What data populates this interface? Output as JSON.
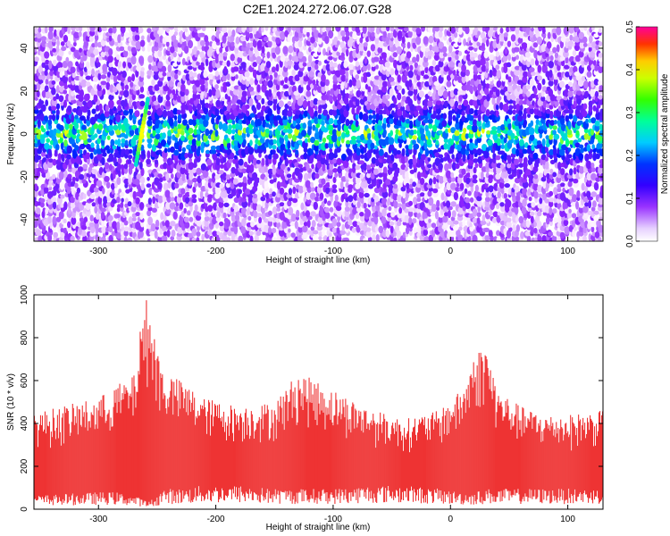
{
  "title": "C2E1.2024.272.06.07.G28",
  "chart_data": [
    {
      "type": "heatmap",
      "xlabel": "Height of straight line (km)",
      "ylabel": "Frequency (Hz)",
      "xlim": [
        -355,
        130
      ],
      "ylim": [
        -50,
        50
      ],
      "xticks": [
        -300,
        -200,
        -100,
        0,
        100
      ],
      "yticks": [
        -40,
        -20,
        0,
        20,
        40
      ],
      "colorbar": {
        "label": "Normalized spectral amplitude",
        "range": [
          0,
          0.5
        ],
        "ticks": [
          "0.0",
          "0.1",
          "0.2",
          "0.3",
          "0.4",
          "0.5"
        ]
      },
      "features": {
        "central_band_hz": [
          -8,
          8
        ],
        "blank_gap_km": [
          -262,
          -258
        ],
        "bright_streak_km": [
          -268,
          -258
        ]
      }
    },
    {
      "type": "area",
      "xlabel": "Height of straight line (km)",
      "ylabel": "SNR (10 * v/v)",
      "xlim": [
        -355,
        130
      ],
      "ylim": [
        0,
        1000
      ],
      "xticks": [
        -300,
        -200,
        -100,
        0,
        100
      ],
      "yticks": [
        0,
        200,
        400,
        600,
        800,
        1000
      ],
      "color": "#ee3333",
      "envelope": {
        "x": [
          -355,
          -300,
          -285,
          -270,
          -262,
          -258,
          -250,
          -245,
          -230,
          -210,
          -180,
          -150,
          -130,
          -100,
          -70,
          -40,
          -10,
          10,
          20,
          30,
          40,
          60,
          80,
          100,
          130
        ],
        "upper": [
          450,
          520,
          580,
          620,
          940,
          1000,
          760,
          650,
          600,
          520,
          480,
          500,
          640,
          560,
          470,
          420,
          460,
          560,
          720,
          780,
          560,
          480,
          440,
          440,
          460
        ],
        "lower": [
          40,
          50,
          50,
          40,
          30,
          20,
          40,
          60,
          60,
          70,
          70,
          60,
          60,
          60,
          70,
          70,
          60,
          50,
          50,
          60,
          60,
          60,
          60,
          60,
          60
        ]
      }
    }
  ]
}
